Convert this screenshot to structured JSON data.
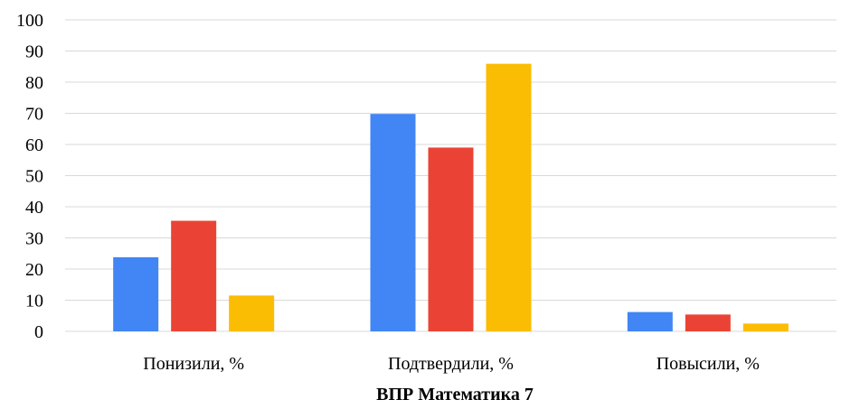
{
  "chart_data": {
    "type": "bar",
    "title": "",
    "xlabel": "ВПР Математика 7",
    "ylabel": "",
    "categories": [
      "Понизили, %",
      "Подтвердили, %",
      "Повысили, %"
    ],
    "series": [
      {
        "values": [
          23.8,
          69.8,
          6.2
        ],
        "color": "#4285f4"
      },
      {
        "values": [
          35.5,
          59.0,
          5.4
        ],
        "color": "#ea4335"
      },
      {
        "values": [
          11.5,
          85.9,
          2.5
        ],
        "color": "#fbbc04"
      }
    ],
    "ylim": [
      0,
      100
    ],
    "yticks": [
      "0",
      "10",
      "20",
      "30",
      "40",
      "50",
      "60",
      "70",
      "80",
      "90",
      "100"
    ],
    "grid": true,
    "legend": "none"
  }
}
